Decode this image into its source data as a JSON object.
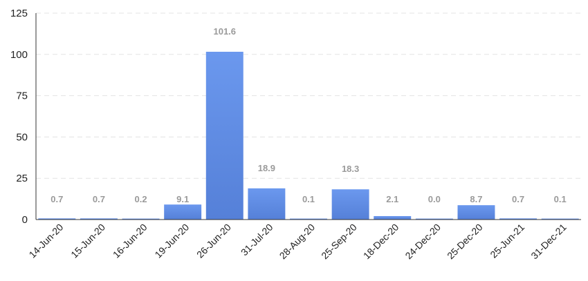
{
  "chart_data": {
    "type": "bar",
    "title": "",
    "xlabel": "",
    "ylabel": "",
    "categories": [
      "14-Jun-20",
      "15-Jun-20",
      "16-Jun-20",
      "19-Jun-20",
      "26-Jun-20",
      "31-Jul-20",
      "28-Aug-20",
      "25-Sep-20",
      "18-Dec-20",
      "24-Dec-20",
      "25-Dec-20",
      "25-Jun-21",
      "31-Dec-21"
    ],
    "values": [
      0.7,
      0.7,
      0.2,
      9.1,
      101.6,
      18.9,
      0.1,
      18.3,
      2.1,
      0.0,
      8.7,
      0.7,
      0.1
    ],
    "value_labels": [
      "0.7",
      "0.7",
      "0.2",
      "9.1",
      "101.6",
      "18.9",
      "0.1",
      "18.3",
      "2.1",
      "0.0",
      "8.7",
      "0.7",
      "0.1"
    ],
    "ylim": [
      0,
      125
    ],
    "yticks": [
      "0",
      "25",
      "50",
      "75",
      "100",
      "125"
    ],
    "grid": true,
    "legend": "none",
    "bar_color_top": "#6b98ee",
    "bar_color_bottom": "#5580d8",
    "label_color": "#9a9a9a"
  }
}
